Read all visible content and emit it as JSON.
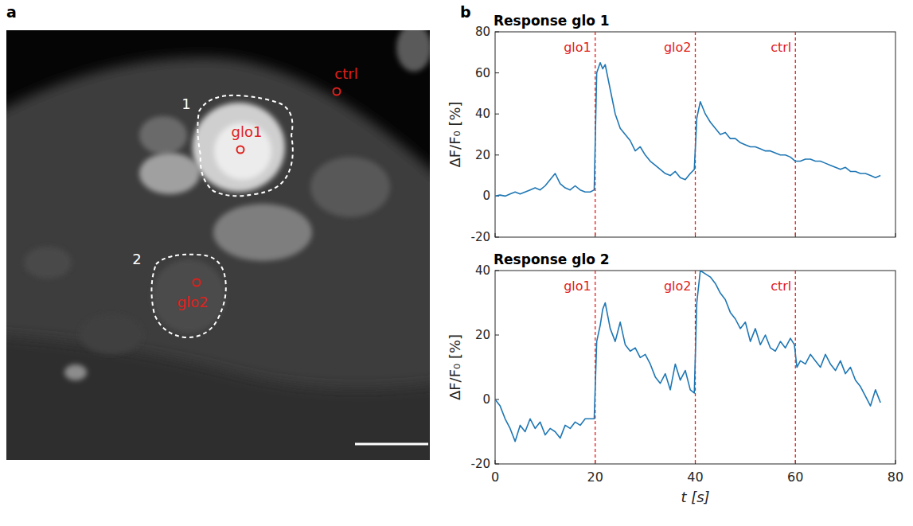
{
  "panel_labels": [
    "a",
    "b"
  ],
  "image": {
    "regions": [
      {
        "number": "1",
        "marker": "glo1"
      },
      {
        "number": "2",
        "marker": "glo2"
      }
    ],
    "control": "ctrl"
  },
  "chart_data": [
    {
      "type": "line",
      "title": "Response glo 1",
      "ylabel": "ΔF/F₀ [%]",
      "color": "#1f77b4",
      "xlim": [
        0,
        80
      ],
      "xticks": [
        0,
        20,
        40,
        60,
        80
      ],
      "ylim": [
        -20,
        80
      ],
      "yticks": [
        -20,
        0,
        20,
        40,
        60,
        80
      ],
      "grid": false,
      "tick_labels": "y",
      "annotations": [
        {
          "x": 20,
          "label": "glo1"
        },
        {
          "x": 40,
          "label": "glo2"
        },
        {
          "x": 60,
          "label": "ctrl"
        }
      ],
      "x": [
        0,
        1,
        2,
        3,
        4,
        5,
        6,
        7,
        8,
        9,
        10,
        11,
        12,
        13,
        14,
        15,
        16,
        17,
        18,
        19,
        19.8,
        20.3,
        21,
        21.5,
        22,
        23,
        24,
        25,
        26,
        27,
        28,
        29,
        30,
        31,
        32,
        33,
        34,
        35,
        36,
        37,
        38,
        39,
        39.8,
        40.3,
        41,
        42,
        43,
        44,
        45,
        46,
        47,
        48,
        49,
        50,
        51,
        52,
        53,
        54,
        55,
        56,
        57,
        58,
        59,
        60,
        61,
        62,
        63,
        64,
        65,
        66,
        67,
        68,
        69,
        70,
        71,
        72,
        73,
        74,
        75,
        76,
        77
      ],
      "values": [
        0,
        0.5,
        0,
        1,
        2,
        1,
        2,
        3,
        4,
        3,
        5,
        8,
        11,
        6,
        4,
        3,
        5,
        3,
        2,
        2,
        3,
        60,
        65,
        62,
        64,
        52,
        40,
        33,
        30,
        27,
        22,
        24,
        20,
        17,
        15,
        13,
        11,
        10,
        12,
        9,
        8,
        11,
        13,
        38,
        46,
        40,
        36,
        33,
        30,
        31,
        28,
        28,
        26,
        25,
        24,
        24,
        23,
        22,
        22,
        21,
        20,
        20,
        19,
        17,
        17,
        18,
        18,
        17,
        17,
        16,
        15,
        14,
        13,
        14,
        12,
        12,
        11,
        11,
        10,
        9,
        10
      ]
    },
    {
      "type": "line",
      "title": "Response glo 2",
      "ylabel": "ΔF/F₀ [%]",
      "xlabel": "t [s]",
      "color": "#1f77b4",
      "xlim": [
        0,
        80
      ],
      "xticks": [
        0,
        20,
        40,
        60,
        80
      ],
      "ylim": [
        -20,
        40
      ],
      "yticks": [
        -20,
        0,
        20,
        40
      ],
      "grid": false,
      "tick_labels": true,
      "annotations": [
        {
          "x": 20,
          "label": "glo1"
        },
        {
          "x": 40,
          "label": "glo2"
        },
        {
          "x": 60,
          "label": "ctrl"
        }
      ],
      "x": [
        0,
        1,
        2,
        3,
        4,
        5,
        6,
        7,
        8,
        9,
        10,
        11,
        12,
        13,
        14,
        15,
        16,
        17,
        18,
        19,
        19.8,
        20.3,
        21,
        21.5,
        22,
        23,
        24,
        25,
        26,
        27,
        28,
        29,
        30,
        31,
        32,
        33,
        34,
        35,
        36,
        37,
        38,
        39,
        39.8,
        40.3,
        41,
        42,
        43,
        44,
        45,
        46,
        47,
        48,
        49,
        50,
        51,
        52,
        53,
        54,
        55,
        56,
        57,
        58,
        59,
        59.8,
        60.3,
        61,
        62,
        63,
        64,
        65,
        66,
        67,
        68,
        69,
        70,
        71,
        72,
        73,
        74,
        75,
        76,
        77
      ],
      "values": [
        0,
        -2,
        -6,
        -9,
        -13,
        -8,
        -10,
        -6,
        -9,
        -7,
        -11,
        -9,
        -10,
        -12,
        -8,
        -9,
        -7,
        -8,
        -6,
        -6,
        -6,
        18,
        23,
        28,
        30,
        22,
        18,
        24,
        17,
        15,
        16,
        13,
        14,
        11,
        7,
        5,
        8,
        3,
        11,
        6,
        9,
        3,
        2,
        30,
        40,
        39,
        38,
        36,
        33,
        31,
        27,
        25,
        22,
        24,
        18,
        22,
        17,
        20,
        16,
        15,
        18,
        16,
        19,
        17,
        10,
        12,
        11,
        14,
        12,
        10,
        14,
        11,
        9,
        12,
        8,
        10,
        6,
        4,
        1,
        -2,
        3,
        -1
      ]
    }
  ]
}
